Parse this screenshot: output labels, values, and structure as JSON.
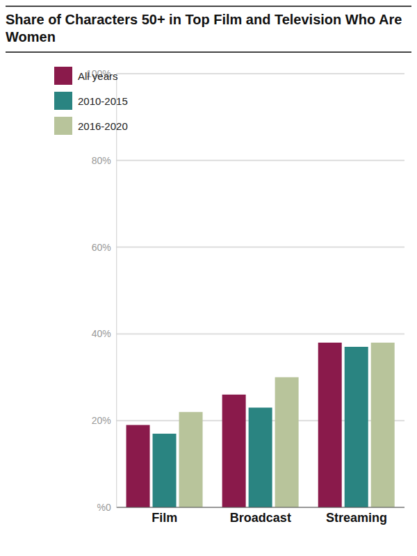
{
  "chart_data": {
    "type": "bar",
    "title": "Share of Characters 50+ in Top Film and Television Who Are Women",
    "categories": [
      "Film",
      "Broadcast",
      "Streaming"
    ],
    "series": [
      {
        "name": "All years",
        "color": "#8a1a4b",
        "values": [
          19,
          26,
          38
        ]
      },
      {
        "name": "2010-2015",
        "color": "#2a8481",
        "values": [
          17,
          23,
          37
        ]
      },
      {
        "name": "2016-2020",
        "color": "#b8c49b",
        "values": [
          22,
          30,
          38
        ]
      }
    ],
    "ylim": [
      0,
      100
    ],
    "yticks": [
      {
        "value": 0,
        "label": "%0"
      },
      {
        "value": 20,
        "label": "20%"
      },
      {
        "value": 40,
        "label": "40%"
      },
      {
        "value": 60,
        "label": "60%"
      },
      {
        "value": 80,
        "label": "80%"
      },
      {
        "value": 100,
        "label": "100%"
      }
    ],
    "grid": true,
    "legend": "upper left"
  }
}
